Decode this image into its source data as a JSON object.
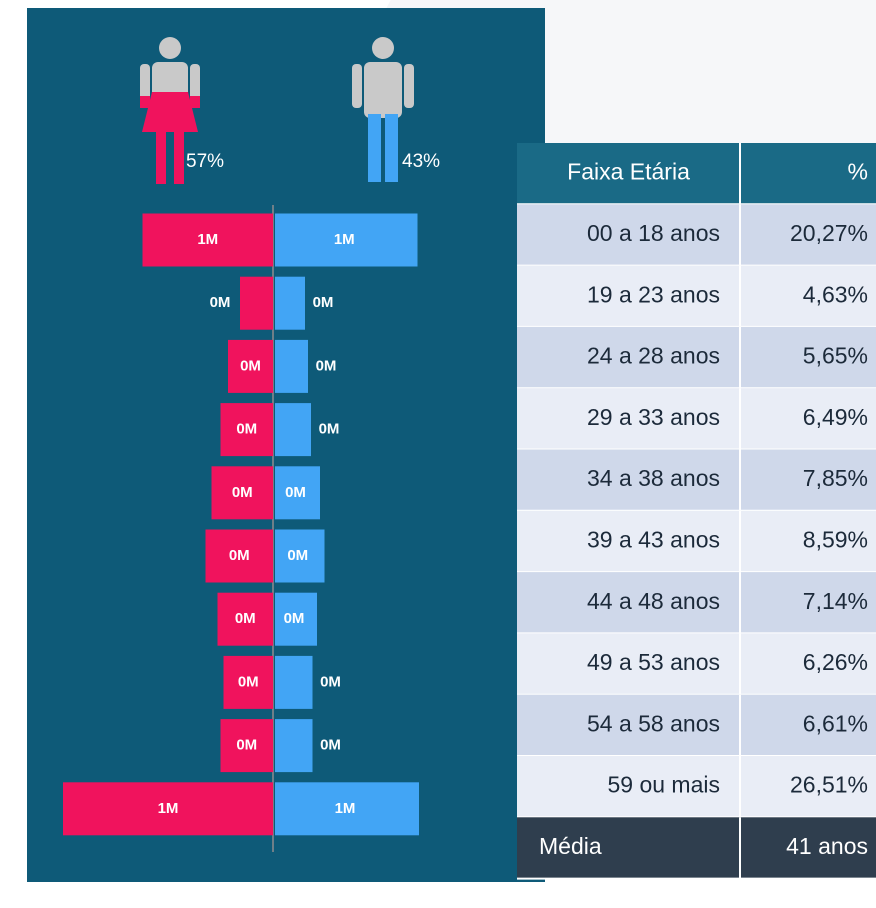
{
  "chart_data": {
    "type": "pyramid",
    "icon_labels": [
      "57%",
      "43%"
    ],
    "series": [
      {
        "color": "#f0135d",
        "values": [
          0.87,
          0.22,
          0.3,
          0.35,
          0.41,
          0.45,
          0.37,
          0.33,
          0.35,
          1.4
        ],
        "value_labels": [
          "1M",
          "0M",
          "0M",
          "0M",
          "0M",
          "0M",
          "0M",
          "0M",
          "0M",
          "1M"
        ]
      },
      {
        "color": "#42a5f5",
        "values": [
          0.95,
          0.2,
          0.22,
          0.24,
          0.3,
          0.33,
          0.28,
          0.25,
          0.25,
          0.96
        ],
        "value_labels": [
          "1M",
          "0M",
          "0M",
          "0M",
          "0M",
          "0M",
          "0M",
          "0M",
          "0M",
          "1M"
        ]
      }
    ]
  },
  "table": {
    "header": [
      "Faixa Etária",
      "%"
    ],
    "rows": [
      [
        "00 a 18 anos",
        "20,27%"
      ],
      [
        "19 a 23 anos",
        "4,63%"
      ],
      [
        "24 a 28 anos",
        "5,65%"
      ],
      [
        "29 a 33 anos",
        "6,49%"
      ],
      [
        "34 a 38 anos",
        "7,85%"
      ],
      [
        "39 a 43 anos",
        "8,59%"
      ],
      [
        "44 a 48 anos",
        "7,14%"
      ],
      [
        "49 a 53 anos",
        "6,26%"
      ],
      [
        "54 a 58 anos",
        "6,61%"
      ],
      [
        "59 ou mais",
        "26,51%"
      ]
    ],
    "footer": [
      "Média",
      "41 anos"
    ]
  }
}
